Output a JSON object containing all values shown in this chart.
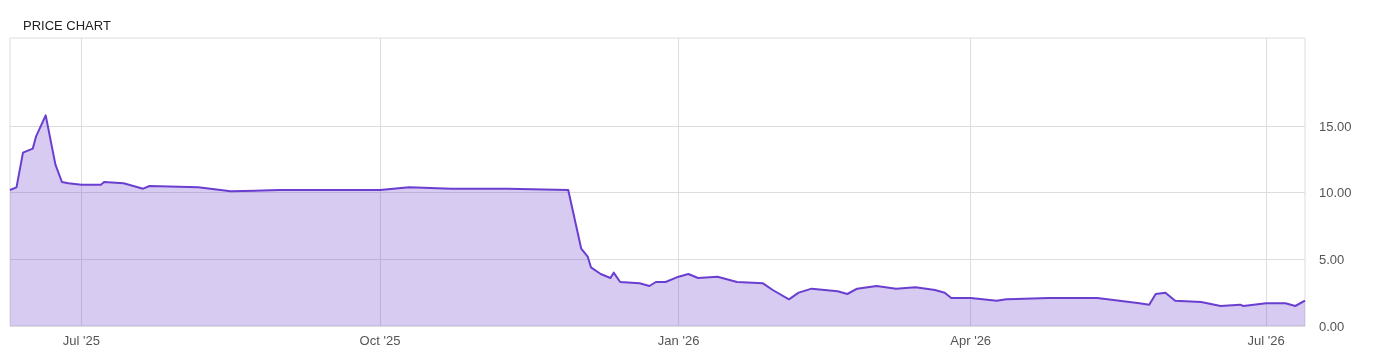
{
  "chart_data": {
    "type": "area",
    "title": "PRICE CHART",
    "x": [
      "2025-06-09",
      "2025-06-11",
      "2025-06-13",
      "2025-06-16",
      "2025-06-17",
      "2025-06-20",
      "2025-06-23",
      "2025-06-25",
      "2025-06-27",
      "2025-07-01",
      "2025-07-07",
      "2025-07-08",
      "2025-07-14",
      "2025-07-17",
      "2025-07-20",
      "2025-07-22",
      "2025-08-06",
      "2025-08-16",
      "2025-08-31",
      "2025-09-22",
      "2025-10-01",
      "2025-10-10",
      "2025-10-23",
      "2025-11-07",
      "2025-11-28",
      "2025-12-02",
      "2025-12-04",
      "2025-12-05",
      "2025-12-08",
      "2025-12-11",
      "2025-12-12",
      "2025-12-14",
      "2025-12-20",
      "2025-12-23",
      "2025-12-25",
      "2025-12-28",
      "2026-01-01",
      "2026-01-04",
      "2026-01-07",
      "2026-01-13",
      "2026-01-19",
      "2026-01-27",
      "2026-01-30",
      "2026-02-04",
      "2026-02-07",
      "2026-02-11",
      "2026-02-19",
      "2026-02-22",
      "2026-02-25",
      "2026-03-03",
      "2026-03-09",
      "2026-03-15",
      "2026-03-21",
      "2026-03-24",
      "2026-03-26",
      "2026-04-01",
      "2026-04-09",
      "2026-04-12",
      "2026-04-25",
      "2026-05-10",
      "2026-05-23",
      "2026-05-26",
      "2026-05-28",
      "2026-05-31",
      "2026-06-03",
      "2026-06-11",
      "2026-06-17",
      "2026-06-23",
      "2026-06-24",
      "2026-07-01",
      "2026-07-07",
      "2026-07-10",
      "2026-07-13"
    ],
    "series": [
      {
        "color": "#6a3fd0",
        "values": [
          10.2,
          10.4,
          13.0,
          13.3,
          14.2,
          15.8,
          12.1,
          10.8,
          10.7,
          10.6,
          10.6,
          10.8,
          10.7,
          10.5,
          10.3,
          10.5,
          10.4,
          10.1,
          10.2,
          10.2,
          10.2,
          10.4,
          10.3,
          10.3,
          10.2,
          5.8,
          5.2,
          4.4,
          3.9,
          3.6,
          4.0,
          3.3,
          3.2,
          3.0,
          3.3,
          3.3,
          3.7,
          3.9,
          3.6,
          3.7,
          3.3,
          3.2,
          2.7,
          2.0,
          2.5,
          2.8,
          2.6,
          2.4,
          2.8,
          3.0,
          2.8,
          2.9,
          2.7,
          2.5,
          2.1,
          2.1,
          1.9,
          2.0,
          2.1,
          2.1,
          1.7,
          1.6,
          2.4,
          2.5,
          1.9,
          1.8,
          1.5,
          1.6,
          1.5,
          1.7,
          1.7,
          1.5,
          1.9
        ]
      }
    ],
    "xlim": [
      "2025-06-09",
      "2026-07-13"
    ],
    "xticks": [
      {
        "value": "2025-07-01",
        "label": "Jul '25"
      },
      {
        "value": "2025-10-01",
        "label": "Oct '25"
      },
      {
        "value": "2026-01-01",
        "label": "Jan '26"
      },
      {
        "value": "2026-04-01",
        "label": "Apr '26"
      },
      {
        "value": "2026-07-01",
        "label": "Jul '26"
      }
    ],
    "ylim": [
      0,
      21.6
    ],
    "yticks": [
      {
        "value": 0,
        "label": "0.00"
      },
      {
        "value": 5,
        "label": "5.00"
      },
      {
        "value": 10,
        "label": "10.00"
      },
      {
        "value": 15,
        "label": "15.00"
      }
    ],
    "grid": true
  }
}
